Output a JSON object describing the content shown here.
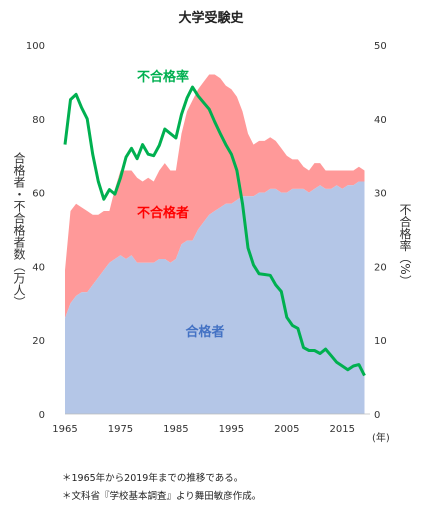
{
  "chart_data": {
    "type": "area",
    "title": "大学受験史",
    "left_axis_label": "合格者・不合格者数（万人）",
    "right_axis_label": "不合格率（%）",
    "x_unit": "(年)",
    "x_range": [
      1965,
      2020
    ],
    "ylim_left": [
      0,
      100
    ],
    "ylim_right": [
      0,
      50
    ],
    "yticks_left": [
      "0",
      "20",
      "40",
      "60",
      "80",
      "100"
    ],
    "yticks_right": [
      "0",
      "10",
      "20",
      "30",
      "40",
      "50"
    ],
    "xticks": [
      "1965",
      "1975",
      "1985",
      "1995",
      "2005",
      "2015"
    ],
    "x": [
      1965,
      1966,
      1967,
      1968,
      1969,
      1970,
      1971,
      1972,
      1973,
      1974,
      1975,
      1976,
      1977,
      1978,
      1979,
      1980,
      1981,
      1982,
      1983,
      1984,
      1985,
      1986,
      1987,
      1988,
      1989,
      1990,
      1991,
      1992,
      1993,
      1994,
      1995,
      1996,
      1997,
      1998,
      1999,
      2000,
      2001,
      2002,
      2003,
      2004,
      2005,
      2006,
      2007,
      2008,
      2009,
      2010,
      2011,
      2012,
      2013,
      2014,
      2015,
      2016,
      2017,
      2018,
      2019
    ],
    "series": [
      {
        "name": "合格者",
        "axis": "left",
        "color": "#b4c6e7",
        "label_color": "#4472c4",
        "values": [
          26,
          30,
          32,
          33,
          33,
          35,
          37,
          39,
          41,
          42,
          43,
          42,
          43,
          41,
          41,
          41,
          41,
          42,
          42,
          41,
          42,
          46,
          47,
          47,
          50,
          52,
          54,
          55,
          56,
          57,
          57,
          58,
          59,
          59,
          59,
          60,
          60,
          61,
          61,
          60,
          60,
          61,
          61,
          61,
          60,
          61,
          62,
          61,
          61,
          62,
          61,
          62,
          62,
          63,
          63
        ]
      },
      {
        "name": "不合格者",
        "axis": "left",
        "color": "#ff9999",
        "label_color": "#ff0000",
        "values": [
          13,
          25,
          25,
          23,
          22,
          19,
          17,
          16,
          14,
          19,
          23,
          24,
          23,
          23,
          22,
          23,
          22,
          24,
          26,
          25,
          24,
          30,
          35,
          38,
          38,
          38,
          38,
          37,
          35,
          32,
          31,
          28,
          23,
          17,
          14,
          14,
          14,
          14,
          13,
          12,
          10,
          8,
          8,
          6,
          6,
          7,
          6,
          5,
          5,
          4,
          5,
          4,
          4,
          4,
          3
        ]
      },
      {
        "name": "不合格率",
        "axis": "right",
        "color": "#00b050",
        "label_color": "#00b050",
        "values": [
          36.5,
          42.6,
          43.3,
          41.5,
          40.0,
          35.2,
          31.5,
          29.1,
          30.4,
          29.8,
          32.0,
          34.8,
          36.0,
          34.6,
          36.5,
          35.2,
          35.0,
          36.4,
          38.6,
          38.0,
          37.4,
          40.6,
          42.8,
          44.3,
          43.1,
          42.2,
          41.3,
          39.6,
          38.0,
          36.5,
          35.2,
          33.0,
          28.5,
          22.5,
          20.2,
          19.0,
          18.9,
          18.8,
          17.5,
          16.6,
          13.1,
          12.0,
          11.6,
          9.0,
          8.6,
          8.6,
          8.2,
          8.8,
          7.9,
          7.0,
          6.5,
          6.0,
          6.5,
          6.7,
          5.2
        ]
      }
    ]
  },
  "notes": [
    "＊1965年から2019年までの推移である。",
    "＊文科省『学校基本調査』より舞田敏彦作成。"
  ]
}
